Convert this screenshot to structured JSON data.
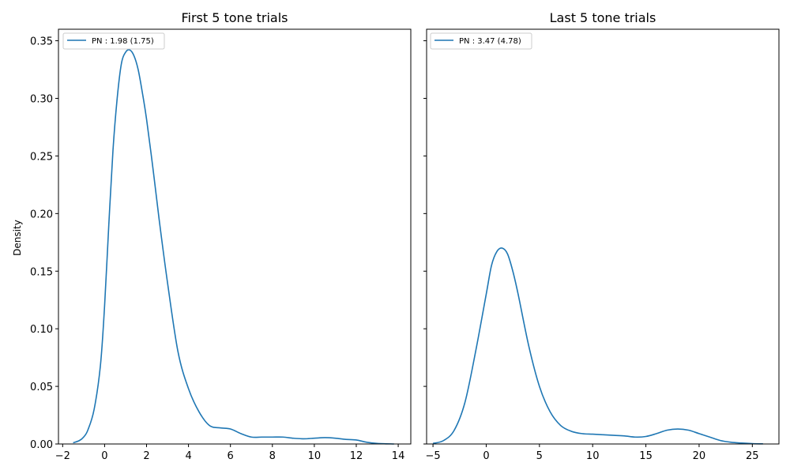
{
  "chart_data": [
    {
      "type": "line",
      "title": "First 5 tone trials",
      "xlabel": "",
      "ylabel": "Density",
      "xlim": [
        -2.2,
        14.6
      ],
      "ylim": [
        0,
        0.36
      ],
      "xticks": [
        -2,
        0,
        2,
        4,
        6,
        8,
        10,
        12,
        14
      ],
      "xtick_labels": [
        "−2",
        "0",
        "2",
        "4",
        "6",
        "8",
        "10",
        "12",
        "14"
      ],
      "yticks": [
        0,
        0.05,
        0.1,
        0.15,
        0.2,
        0.25,
        0.3,
        0.35
      ],
      "ytick_labels": [
        "0.00",
        "0.05",
        "0.10",
        "0.15",
        "0.20",
        "0.25",
        "0.30",
        "0.35"
      ],
      "grid": false,
      "legend_position": "top-left",
      "color": "#1f77b4",
      "series": [
        {
          "name": "PN : 1.98 (1.75)",
          "x": [
            -1.5,
            -1.2,
            -1.0,
            -0.8,
            -0.5,
            -0.2,
            0.0,
            0.2,
            0.4,
            0.6,
            0.8,
            1.0,
            1.2,
            1.4,
            1.6,
            1.8,
            2.0,
            2.3,
            2.6,
            3.0,
            3.5,
            4.0,
            4.5,
            5.0,
            5.5,
            6.0,
            6.5,
            7.0,
            7.5,
            8.0,
            8.5,
            9.0,
            9.5,
            10.0,
            10.5,
            11.0,
            11.5,
            12.0,
            12.5,
            13.0,
            13.8
          ],
          "y": [
            0.001,
            0.003,
            0.006,
            0.012,
            0.03,
            0.068,
            0.12,
            0.19,
            0.255,
            0.3,
            0.33,
            0.34,
            0.342,
            0.337,
            0.325,
            0.305,
            0.282,
            0.24,
            0.195,
            0.14,
            0.08,
            0.048,
            0.028,
            0.016,
            0.014,
            0.013,
            0.009,
            0.006,
            0.006,
            0.006,
            0.006,
            0.005,
            0.0045,
            0.005,
            0.0055,
            0.005,
            0.004,
            0.0035,
            0.0015,
            0.0005,
            0.0
          ]
        }
      ]
    },
    {
      "type": "line",
      "title": "Last 5 tone trials",
      "xlabel": "",
      "ylabel": "",
      "xlim": [
        -5.6,
        27.5
      ],
      "ylim": [
        0,
        0.36
      ],
      "xticks": [
        -5,
        0,
        5,
        10,
        15,
        20,
        25
      ],
      "xtick_labels": [
        "−5",
        "0",
        "5",
        "10",
        "15",
        "20",
        "25"
      ],
      "grid": false,
      "legend_position": "top-left",
      "color": "#1f77b4",
      "series": [
        {
          "name": "PN : 3.47 (4.78)",
          "x": [
            -5.0,
            -4.0,
            -3.0,
            -2.0,
            -1.0,
            0.0,
            0.5,
            1.0,
            1.5,
            2.0,
            2.5,
            3.0,
            4.0,
            5.0,
            6.0,
            7.0,
            8.0,
            9.0,
            10.0,
            11.0,
            12.0,
            13.0,
            14.0,
            15.0,
            16.0,
            17.0,
            18.0,
            19.0,
            20.0,
            21.0,
            22.0,
            23.0,
            24.0,
            25.0,
            26.0
          ],
          "y": [
            0.0005,
            0.003,
            0.012,
            0.036,
            0.08,
            0.13,
            0.155,
            0.167,
            0.17,
            0.165,
            0.15,
            0.13,
            0.085,
            0.05,
            0.028,
            0.016,
            0.011,
            0.009,
            0.0085,
            0.008,
            0.0075,
            0.007,
            0.006,
            0.0065,
            0.009,
            0.012,
            0.013,
            0.012,
            0.009,
            0.006,
            0.003,
            0.0015,
            0.0008,
            0.0003,
            0.0001
          ]
        }
      ]
    }
  ]
}
